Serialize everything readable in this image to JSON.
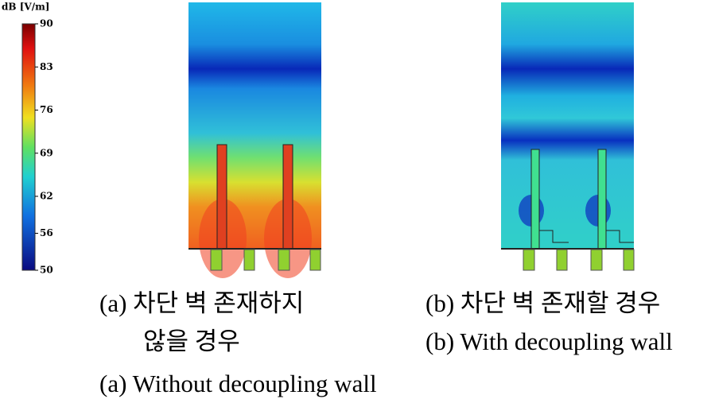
{
  "colorbar": {
    "title": "dB [V/m]",
    "ticks": [
      90,
      83,
      76,
      69,
      62,
      56,
      50
    ]
  },
  "panels": [
    {
      "caption_lines": [
        "(a) 차단 벽 존재하지",
        "않을 경우"
      ],
      "english_caption": "(a) Without decoupling wall"
    },
    {
      "caption_lines": [
        "(b) 차단 벽 존재할 경우"
      ],
      "english_caption": "(b) With decoupling wall"
    }
  ]
}
